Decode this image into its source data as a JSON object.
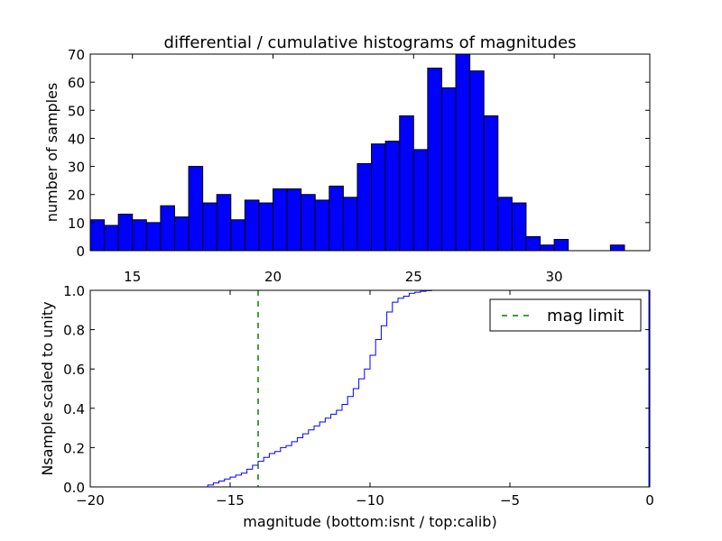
{
  "chart_data": [
    {
      "type": "bar",
      "title": "differential / cumulative histograms of magnitudes",
      "xlabel": "",
      "ylabel": "number of samples",
      "xlim": [
        13.5,
        33.4
      ],
      "ylim": [
        0,
        70
      ],
      "x_axis_position": "top",
      "xticks": [
        15,
        20,
        25,
        30
      ],
      "yticks": [
        0,
        10,
        20,
        30,
        40,
        50,
        60,
        70
      ],
      "bar_color": "#0000ff",
      "bin_width": 0.5,
      "bin_start": 13.5,
      "values": [
        11,
        9,
        13,
        11,
        10,
        16,
        12,
        30,
        17,
        20,
        11,
        18,
        17,
        22,
        22,
        20,
        18,
        23,
        19,
        31,
        38,
        39,
        48,
        36,
        65,
        58,
        70,
        64,
        48,
        19,
        17,
        5,
        2,
        4,
        0,
        0,
        0,
        2,
        0,
        0
      ]
    },
    {
      "type": "line",
      "xlabel": "magnitude (bottom:isnt / top:calib)",
      "ylabel": "Nsample scaled to unity",
      "xlim": [
        -20,
        0
      ],
      "ylim": [
        0,
        1.0
      ],
      "xticks": [
        -20,
        -15,
        -10,
        -5,
        0
      ],
      "xtick_labels": [
        "−20",
        "−15",
        "−10",
        "−5",
        "0"
      ],
      "yticks": [
        0.0,
        0.2,
        0.4,
        0.6,
        0.8,
        1.0
      ],
      "ytick_labels": [
        "0.0",
        "0.2",
        "0.4",
        "0.6",
        "0.8",
        "1.0"
      ],
      "legend_position": "top-right",
      "series": [
        {
          "style": "step",
          "color": "#0000ff",
          "x": [
            -20,
            -15.8,
            -15.6,
            -15.4,
            -15.2,
            -15.0,
            -14.8,
            -14.6,
            -14.4,
            -14.2,
            -14.0,
            -13.8,
            -13.6,
            -13.4,
            -13.2,
            -13.0,
            -12.8,
            -12.6,
            -12.4,
            -12.2,
            -12.0,
            -11.8,
            -11.6,
            -11.4,
            -11.2,
            -11.0,
            -10.8,
            -10.6,
            -10.4,
            -10.2,
            -10.0,
            -9.8,
            -9.6,
            -9.4,
            -9.2,
            -9.0,
            -8.8,
            -8.6,
            -8.4,
            -8.2,
            -8.0,
            -7.8,
            -7.6,
            -7.4,
            0
          ],
          "y": [
            0.0,
            0.01,
            0.02,
            0.03,
            0.04,
            0.05,
            0.06,
            0.07,
            0.09,
            0.11,
            0.13,
            0.15,
            0.17,
            0.18,
            0.2,
            0.21,
            0.23,
            0.25,
            0.27,
            0.29,
            0.31,
            0.33,
            0.35,
            0.37,
            0.39,
            0.42,
            0.46,
            0.5,
            0.55,
            0.6,
            0.67,
            0.75,
            0.82,
            0.89,
            0.94,
            0.96,
            0.97,
            0.985,
            0.99,
            0.995,
            0.998,
            1.0,
            1.0,
            1.0,
            1.0
          ]
        },
        {
          "name": "mag limit",
          "style": "vline-dashed",
          "color": "#008000",
          "x_value": -14.0
        }
      ]
    }
  ]
}
